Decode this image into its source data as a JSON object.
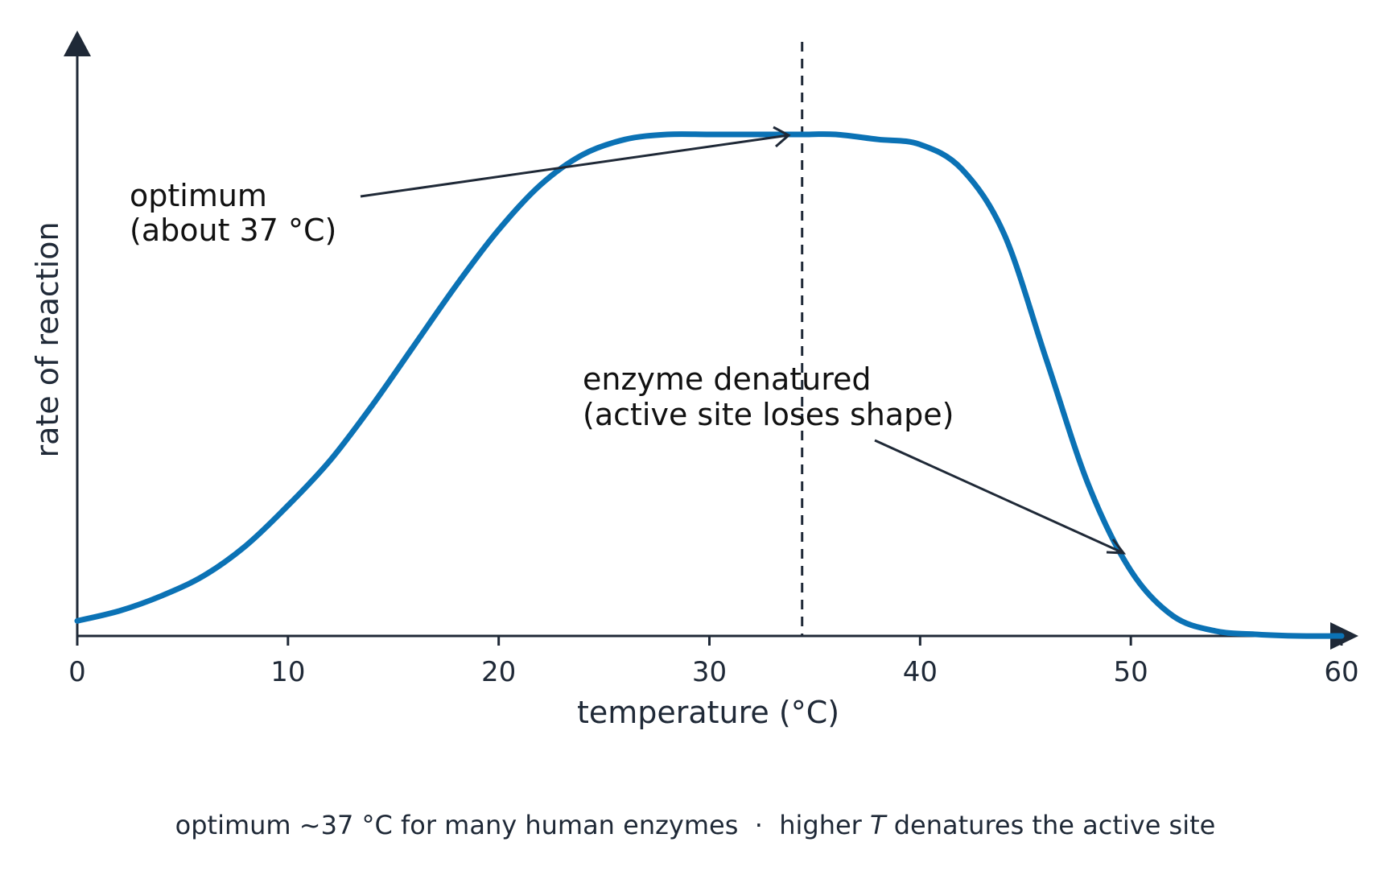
{
  "chart_data": {
    "type": "line",
    "xlabel": "temperature (°C)",
    "ylabel": "rate of reaction",
    "xlim": [
      0,
      60
    ],
    "x_ticks": [
      "0",
      "10",
      "20",
      "30",
      "40",
      "50",
      "60"
    ],
    "y_ticks": [],
    "grid": false,
    "colors": {
      "curve": "#0b72b5",
      "axis": "#1f2937",
      "annotation": "#1f2937"
    },
    "series": [
      {
        "x": [
          0,
          2,
          4,
          6,
          8,
          10,
          12,
          14,
          16,
          18,
          20,
          22,
          24,
          26,
          28,
          30,
          32,
          34,
          34.5,
          36,
          38,
          40,
          42,
          44,
          46,
          48,
          50,
          52,
          54,
          56,
          58,
          60
        ],
        "y": [
          0.03,
          0.05,
          0.08,
          0.12,
          0.18,
          0.26,
          0.35,
          0.46,
          0.58,
          0.7,
          0.81,
          0.9,
          0.96,
          0.99,
          1.0,
          1.0,
          1.0,
          1.0,
          1.0,
          1.0,
          0.99,
          0.98,
          0.93,
          0.8,
          0.55,
          0.3,
          0.13,
          0.04,
          0.01,
          0.003,
          0.0,
          0.0
        ]
      }
    ],
    "optimum_line_x": 34.4,
    "annotations": [
      {
        "lines": [
          "optimum",
          "(about 37 °C)"
        ]
      },
      {
        "lines": [
          "enzyme denatured",
          "(active site loses shape)"
        ]
      }
    ],
    "caption": {
      "prefix": "optimum ~37 °C for many human enzymes  ·  higher ",
      "italic": "T",
      "suffix": " denatures the active site"
    }
  }
}
